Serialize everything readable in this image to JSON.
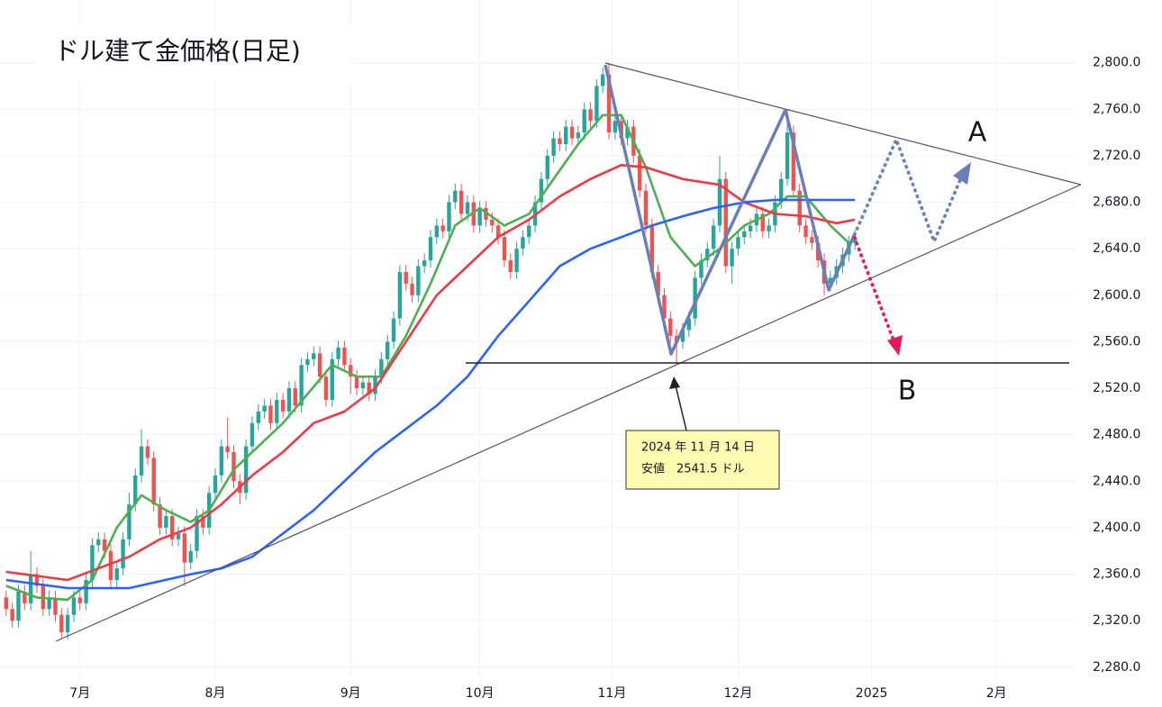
{
  "chart_data": {
    "type": "candlestick",
    "title": "ドル建て金価格(日足)",
    "xlim": [
      -1,
      174
    ],
    "ylim": [
      2269,
      2854
    ],
    "grid": true,
    "up_color": "#26a69a",
    "down_color": "#ef5350",
    "xticks": [
      {
        "value": 12,
        "label": "7月"
      },
      {
        "value": 34,
        "label": "8月"
      },
      {
        "value": 56,
        "label": "9月"
      },
      {
        "value": 77,
        "label": "10月"
      },
      {
        "value": 98.5,
        "label": "11月"
      },
      {
        "value": 119,
        "label": "12月"
      },
      {
        "value": 140.7,
        "label": "2025"
      },
      {
        "value": 161,
        "label": "2月"
      }
    ],
    "yticks": [
      {
        "value": 2280,
        "label": "2,280.0"
      },
      {
        "value": 2320,
        "label": "2,320.0"
      },
      {
        "value": 2360,
        "label": "2,360.0"
      },
      {
        "value": 2400,
        "label": "2,400.0"
      },
      {
        "value": 2440,
        "label": "2,440.0"
      },
      {
        "value": 2480,
        "label": "2,480.0"
      },
      {
        "value": 2520,
        "label": "2,520.0"
      },
      {
        "value": 2560,
        "label": "2,560.0"
      },
      {
        "value": 2600,
        "label": "2,600.0"
      },
      {
        "value": 2640,
        "label": "2,640.0"
      },
      {
        "value": 2680,
        "label": "2,680.0"
      },
      {
        "value": 2720,
        "label": "2,720.0"
      },
      {
        "value": 2760,
        "label": "2,760.0"
      },
      {
        "value": 2800,
        "label": "2,800.0"
      }
    ],
    "x": [
      0,
      1,
      2,
      3,
      4,
      5,
      6,
      7,
      8,
      9,
      10,
      11,
      12,
      13,
      14,
      15,
      16,
      17,
      18,
      19,
      20,
      21,
      22,
      23,
      24,
      25,
      26,
      27,
      28,
      29,
      30,
      31,
      32,
      33,
      34,
      35,
      36,
      37,
      38,
      39,
      40,
      41,
      42,
      43,
      44,
      45,
      46,
      47,
      48,
      49,
      50,
      51,
      52,
      53,
      54,
      55,
      56,
      57,
      58,
      59,
      60,
      61,
      62,
      63,
      64,
      65,
      66,
      67,
      68,
      69,
      70,
      71,
      72,
      73,
      74,
      75,
      76,
      77,
      78,
      79,
      80,
      81,
      82,
      83,
      84,
      85,
      86,
      87,
      88,
      89,
      90,
      91,
      92,
      93,
      94,
      95,
      96,
      97,
      98,
      99,
      100,
      101,
      102,
      103,
      104,
      105,
      106,
      107,
      108,
      109,
      110,
      111,
      112,
      113,
      114,
      115,
      116,
      117,
      118,
      119,
      120,
      121,
      122,
      123,
      124,
      125,
      126,
      127,
      128,
      129,
      130,
      131,
      132,
      133,
      134,
      135,
      136,
      137,
      138
    ],
    "open": [
      2340,
      2330,
      2320,
      2345,
      2335,
      2360,
      2350,
      2330,
      2340,
      2325,
      2310,
      2325,
      2340,
      2335,
      2355,
      2385,
      2390,
      2380,
      2355,
      2365,
      2390,
      2420,
      2445,
      2470,
      2460,
      2420,
      2400,
      2410,
      2390,
      2395,
      2370,
      2380,
      2410,
      2400,
      2430,
      2445,
      2470,
      2465,
      2440,
      2430,
      2470,
      2490,
      2500,
      2505,
      2490,
      2510,
      2500,
      2520,
      2505,
      2540,
      2545,
      2550,
      2530,
      2510,
      2545,
      2555,
      2540,
      2530,
      2520,
      2525,
      2515,
      2530,
      2545,
      2560,
      2580,
      2620,
      2610,
      2600,
      2625,
      2630,
      2650,
      2660,
      2655,
      2680,
      2690,
      2670,
      2680,
      2660,
      2675,
      2665,
      2660,
      2650,
      2630,
      2620,
      2640,
      2650,
      2660,
      2680,
      2700,
      2720,
      2735,
      2730,
      2745,
      2735,
      2740,
      2760,
      2750,
      2780,
      2790,
      2740,
      2750,
      2735,
      2745,
      2720,
      2690,
      2660,
      2620,
      2600,
      2580,
      2565,
      2560,
      2570,
      2580,
      2615,
      2630,
      2640,
      2660,
      2700,
      2625,
      2640,
      2650,
      2655,
      2660,
      2670,
      2655,
      2660,
      2680,
      2700,
      2740,
      2690,
      2660,
      2650,
      2645,
      2630,
      2610,
      2615,
      2625,
      2635,
      2645
    ],
    "high": [
      2346,
      2336,
      2351,
      2351,
      2380,
      2366,
      2356,
      2346,
      2346,
      2331,
      2331,
      2346,
      2346,
      2361,
      2391,
      2396,
      2396,
      2386,
      2371,
      2396,
      2430,
      2451,
      2485,
      2476,
      2466,
      2426,
      2416,
      2416,
      2401,
      2401,
      2386,
      2416,
      2416,
      2436,
      2451,
      2476,
      2495,
      2471,
      2446,
      2476,
      2496,
      2506,
      2511,
      2511,
      2516,
      2516,
      2526,
      2526,
      2546,
      2551,
      2556,
      2556,
      2536,
      2551,
      2561,
      2561,
      2546,
      2536,
      2531,
      2531,
      2536,
      2551,
      2566,
      2586,
      2626,
      2626,
      2616,
      2631,
      2636,
      2656,
      2666,
      2666,
      2686,
      2696,
      2696,
      2686,
      2686,
      2681,
      2681,
      2671,
      2666,
      2656,
      2636,
      2646,
      2656,
      2666,
      2686,
      2706,
      2726,
      2741,
      2741,
      2751,
      2751,
      2746,
      2766,
      2766,
      2786,
      2796,
      2800,
      2756,
      2756,
      2751,
      2751,
      2726,
      2696,
      2666,
      2626,
      2606,
      2586,
      2571,
      2576,
      2586,
      2621,
      2636,
      2646,
      2666,
      2720,
      2706,
      2646,
      2656,
      2661,
      2666,
      2676,
      2676,
      2666,
      2686,
      2706,
      2760,
      2746,
      2696,
      2666,
      2656,
      2651,
      2636,
      2621,
      2631,
      2641,
      2651,
      2656
    ],
    "low": [
      2324,
      2314,
      2314,
      2329,
      2329,
      2344,
      2324,
      2324,
      2319,
      2305,
      2304,
      2319,
      2329,
      2329,
      2349,
      2379,
      2374,
      2349,
      2349,
      2359,
      2384,
      2414,
      2439,
      2454,
      2414,
      2394,
      2394,
      2384,
      2384,
      2350,
      2364,
      2374,
      2394,
      2394,
      2424,
      2439,
      2459,
      2434,
      2420,
      2424,
      2464,
      2484,
      2494,
      2484,
      2484,
      2494,
      2494,
      2499,
      2499,
      2534,
      2539,
      2524,
      2504,
      2504,
      2539,
      2534,
      2515,
      2514,
      2514,
      2509,
      2509,
      2524,
      2539,
      2554,
      2574,
      2604,
      2594,
      2594,
      2619,
      2624,
      2644,
      2649,
      2649,
      2674,
      2664,
      2664,
      2654,
      2654,
      2659,
      2654,
      2644,
      2624,
      2614,
      2614,
      2634,
      2644,
      2654,
      2674,
      2694,
      2714,
      2724,
      2724,
      2729,
      2729,
      2734,
      2744,
      2744,
      2774,
      2734,
      2734,
      2729,
      2729,
      2714,
      2684,
      2654,
      2614,
      2594,
      2574,
      2559,
      2541.5,
      2554,
      2564,
      2574,
      2609,
      2624,
      2634,
      2654,
      2619,
      2610,
      2634,
      2644,
      2649,
      2654,
      2649,
      2649,
      2654,
      2674,
      2694,
      2684,
      2654,
      2644,
      2639,
      2624,
      2600,
      2604,
      2609,
      2619,
      2629,
      2639
    ],
    "close": [
      2330,
      2320,
      2345,
      2335,
      2360,
      2350,
      2330,
      2340,
      2325,
      2310,
      2325,
      2340,
      2335,
      2355,
      2385,
      2390,
      2380,
      2355,
      2365,
      2390,
      2420,
      2445,
      2470,
      2460,
      2420,
      2400,
      2410,
      2390,
      2395,
      2370,
      2380,
      2410,
      2400,
      2430,
      2445,
      2470,
      2465,
      2440,
      2430,
      2470,
      2490,
      2500,
      2505,
      2490,
      2510,
      2500,
      2520,
      2505,
      2540,
      2545,
      2550,
      2530,
      2510,
      2545,
      2555,
      2540,
      2530,
      2520,
      2525,
      2515,
      2530,
      2545,
      2560,
      2580,
      2620,
      2610,
      2600,
      2625,
      2630,
      2650,
      2660,
      2655,
      2680,
      2690,
      2670,
      2680,
      2660,
      2675,
      2665,
      2660,
      2650,
      2630,
      2620,
      2640,
      2650,
      2660,
      2680,
      2700,
      2720,
      2735,
      2730,
      2745,
      2735,
      2740,
      2760,
      2750,
      2780,
      2790,
      2740,
      2750,
      2735,
      2745,
      2720,
      2690,
      2660,
      2620,
      2600,
      2580,
      2565,
      2560,
      2570,
      2580,
      2615,
      2630,
      2640,
      2660,
      2700,
      2625,
      2640,
      2650,
      2655,
      2660,
      2670,
      2655,
      2660,
      2680,
      2700,
      2740,
      2690,
      2660,
      2650,
      2645,
      2630,
      2610,
      2615,
      2625,
      2635,
      2645,
      2650
    ],
    "moving_averages": [
      {
        "color": "#4caf50",
        "x": [
          0,
          5,
          10,
          14,
          18,
          22,
          26,
          30,
          33,
          37,
          41,
          45,
          49,
          53,
          57,
          61,
          65,
          69,
          73,
          77,
          81,
          85,
          89,
          93,
          97,
          100,
          104,
          108,
          112,
          116,
          120,
          124,
          127,
          130,
          134,
          137
        ],
        "values": [
          2350,
          2340,
          2338,
          2355,
          2400,
          2428,
          2415,
          2405,
          2415,
          2450,
          2470,
          2490,
          2515,
          2540,
          2530,
          2530,
          2565,
          2610,
          2660,
          2675,
          2660,
          2670,
          2700,
          2730,
          2755,
          2755,
          2710,
          2650,
          2625,
          2640,
          2660,
          2670,
          2685,
          2685,
          2660,
          2645
        ]
      },
      {
        "color": "#f23645",
        "x": [
          0,
          10,
          20,
          25,
          30,
          35,
          40,
          45,
          50,
          55,
          60,
          65,
          70,
          75,
          80,
          85,
          90,
          95,
          100,
          104,
          110,
          116,
          120,
          125,
          130,
          135,
          138
        ],
        "values": [
          2362,
          2355,
          2375,
          2390,
          2400,
          2420,
          2445,
          2465,
          2490,
          2500,
          2520,
          2560,
          2600,
          2625,
          2650,
          2665,
          2685,
          2700,
          2712,
          2710,
          2700,
          2695,
          2680,
          2670,
          2668,
          2662,
          2665
        ]
      },
      {
        "color": "#2962ff",
        "x": [
          0,
          10,
          20,
          30,
          35,
          40,
          45,
          50,
          55,
          60,
          65,
          70,
          75,
          80,
          85,
          90,
          95,
          100,
          105,
          110,
          115,
          120,
          125,
          130,
          135,
          138
        ],
        "values": [
          2355,
          2348,
          2348,
          2360,
          2365,
          2375,
          2395,
          2415,
          2440,
          2465,
          2485,
          2505,
          2530,
          2565,
          2595,
          2625,
          2640,
          2650,
          2660,
          2668,
          2675,
          2680,
          2682,
          2682,
          2682,
          2682
        ]
      }
    ],
    "annotations": {
      "labels": [
        "A",
        "B"
      ],
      "note": [
        "2024 年 11 月 14 日",
        "安値　2541.5 ドル"
      ]
    }
  }
}
